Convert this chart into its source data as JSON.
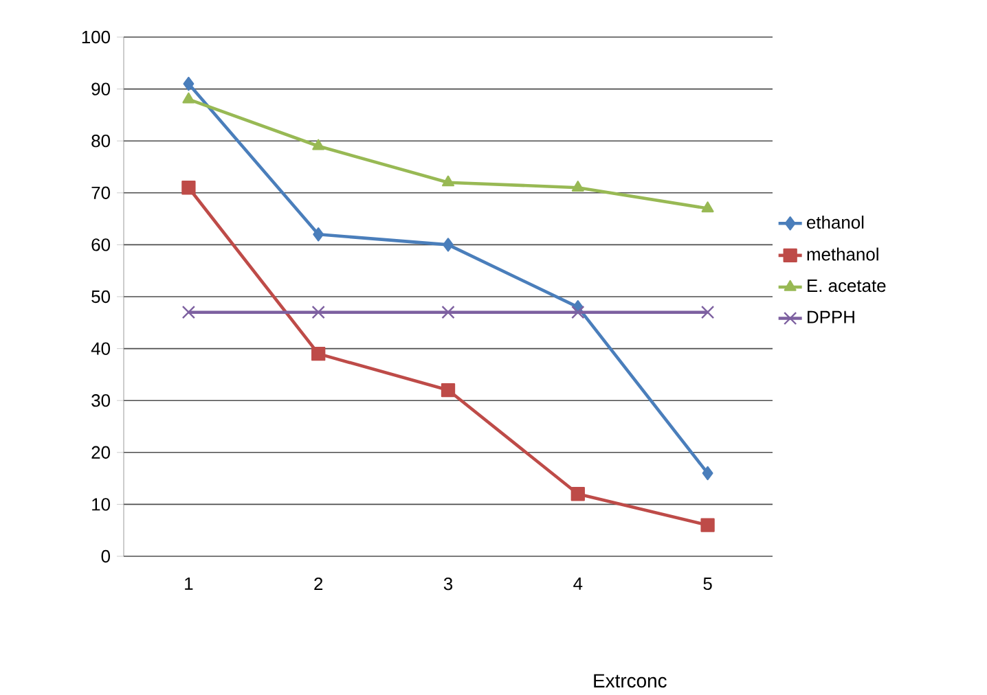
{
  "chart_data": {
    "type": "line",
    "xlabel": "Extrconc",
    "categories": [
      "1",
      "2",
      "3",
      "4",
      "5"
    ],
    "series": [
      {
        "name": "ethanol",
        "color": "#4a7ebb",
        "marker": "diamond",
        "values": [
          91,
          62,
          60,
          48,
          16
        ]
      },
      {
        "name": "methanol",
        "color": "#be4b48",
        "marker": "square",
        "values": [
          71,
          39,
          32,
          12,
          6
        ]
      },
      {
        "name": "E. acetate",
        "color": "#98b954",
        "marker": "triangle",
        "values": [
          88,
          79,
          72,
          71,
          67
        ]
      },
      {
        "name": "DPPH",
        "color": "#7d60a0",
        "marker": "cross",
        "values": [
          47,
          47,
          47,
          47,
          47
        ]
      }
    ],
    "ylim": [
      0,
      100
    ],
    "yticks": [
      0,
      10,
      20,
      30,
      40,
      50,
      60,
      70,
      80,
      90,
      100
    ],
    "grid": "y",
    "legend": "right",
    "line_style": "solid"
  }
}
